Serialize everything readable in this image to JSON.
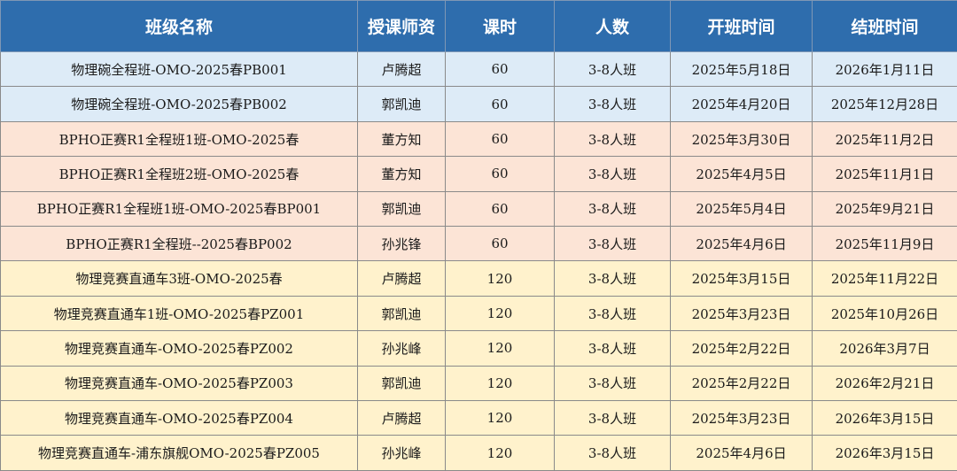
{
  "headers": [
    "班级名称",
    "授课师资",
    "课时",
    "人数",
    "开班时间",
    "结班时间"
  ],
  "group_colors": {
    "blue": "#ddebf7",
    "pink": "#fce4d6",
    "yellow": "#fff2cc",
    "header": "#2e6dad"
  },
  "rows": [
    {
      "group": "blue",
      "name": "物理碗全程班-OMO-2025春PB001",
      "teacher": "卢腾超",
      "hours": "60",
      "size": "3-8人班",
      "start": "2025年5月18日",
      "end": "2026年1月11日"
    },
    {
      "group": "blue",
      "name": "物理碗全程班-OMO-2025春PB002",
      "teacher": "郭凯迪",
      "hours": "60",
      "size": "3-8人班",
      "start": "2025年4月20日",
      "end": "2025年12月28日"
    },
    {
      "group": "pink",
      "name": "BPHO正赛R1全程班1班-OMO-2025春",
      "teacher": "董方知",
      "hours": "60",
      "size": "3-8人班",
      "start": "2025年3月30日",
      "end": "2025年11月2日"
    },
    {
      "group": "pink",
      "name": "BPHO正赛R1全程班2班-OMO-2025春",
      "teacher": "董方知",
      "hours": "60",
      "size": "3-8人班",
      "start": "2025年4月5日",
      "end": "2025年11月1日"
    },
    {
      "group": "pink",
      "name": "BPHO正赛R1全程班1班-OMO-2025春BP001",
      "teacher": "郭凯迪",
      "hours": "60",
      "size": "3-8人班",
      "start": "2025年5月4日",
      "end": "2025年9月21日"
    },
    {
      "group": "pink",
      "name": "BPHO正赛R1全程班--2025春BP002",
      "teacher": "孙兆锋",
      "hours": "60",
      "size": "3-8人班",
      "start": "2025年4月6日",
      "end": "2025年11月9日"
    },
    {
      "group": "yellow",
      "name": "物理竞赛直通车3班-OMO-2025春",
      "teacher": "卢腾超",
      "hours": "120",
      "size": "3-8人班",
      "start": "2025年3月15日",
      "end": "2025年11月22日"
    },
    {
      "group": "yellow",
      "name": "物理竞赛直通车1班-OMO-2025春PZ001",
      "teacher": "郭凯迪",
      "hours": "120",
      "size": "3-8人班",
      "start": "2025年3月23日",
      "end": "2025年10月26日"
    },
    {
      "group": "yellow",
      "name": "物理竞赛直通车-OMO-2025春PZ002",
      "teacher": "孙兆峰",
      "hours": "120",
      "size": "3-8人班",
      "start": "2025年2月22日",
      "end": "2026年3月7日"
    },
    {
      "group": "yellow",
      "name": "物理竞赛直通车-OMO-2025春PZ003",
      "teacher": "郭凯迪",
      "hours": "120",
      "size": "3-8人班",
      "start": "2025年2月22日",
      "end": "2026年2月21日"
    },
    {
      "group": "yellow",
      "name": "物理竞赛直通车-OMO-2025春PZ004",
      "teacher": "卢腾超",
      "hours": "120",
      "size": "3-8人班",
      "start": "2025年3月23日",
      "end": "2026年3月15日"
    },
    {
      "group": "yellow",
      "name": "物理竞赛直通车-浦东旗舰OMO-2025春PZ005",
      "teacher": "孙兆峰",
      "hours": "120",
      "size": "3-8人班",
      "start": "2025年4月6日",
      "end": "2026年3月15日"
    }
  ]
}
